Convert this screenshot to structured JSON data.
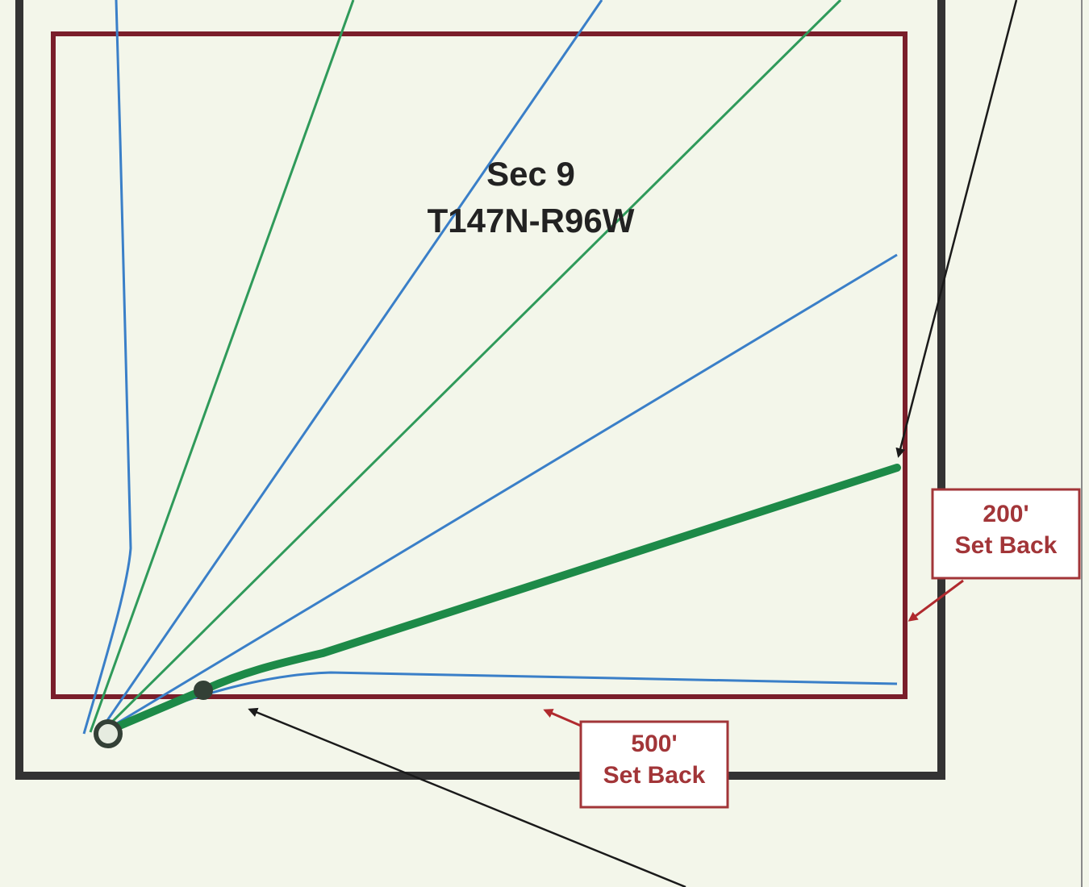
{
  "section": {
    "line1": "Sec 9",
    "line2": "T147N-R96W"
  },
  "callouts": {
    "setback_200": {
      "line1": "200'",
      "line2": "Set Back"
    },
    "setback_500": {
      "line1": "500'",
      "line2": "Set Back"
    }
  },
  "colors": {
    "background": "#f3f6ea",
    "section_boundary": "#333333",
    "setback_boundary": "#7a1e2a",
    "blue_laterals": "#3a7fc8",
    "green_laterals": "#2f9a5a",
    "primary_lateral": "#1d8a48",
    "callout_text": "#a23538",
    "arrow": "#1a1a1a"
  }
}
